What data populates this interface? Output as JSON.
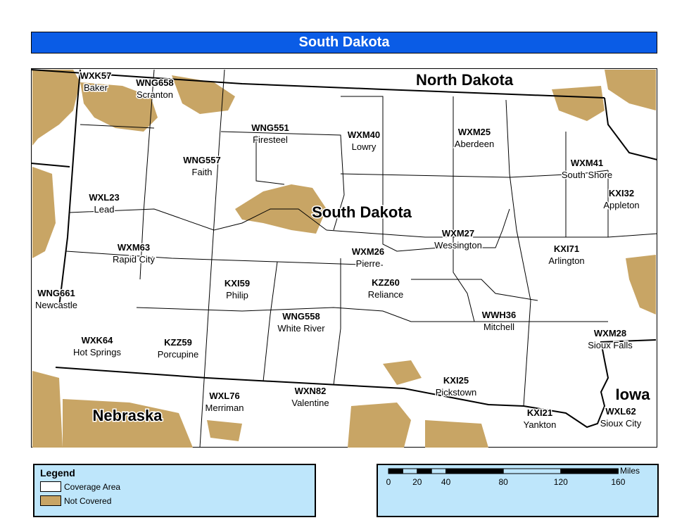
{
  "title": "South Dakota",
  "colors": {
    "title_bar": "#0a5ce6",
    "coverage": "#ffffff",
    "not_covered": "#c8a565",
    "panel": "#bee6fb"
  },
  "states": [
    {
      "name": "North Dakota"
    },
    {
      "name": "South Dakota"
    },
    {
      "name": "Nebraska"
    },
    {
      "name": "Iowa"
    }
  ],
  "stations": [
    {
      "code": "WXK57",
      "city": "Baker"
    },
    {
      "code": "WNG658",
      "city": "Scranton"
    },
    {
      "code": "WNG551",
      "city": "Firesteel"
    },
    {
      "code": "WXM40",
      "city": "Lowry"
    },
    {
      "code": "WXM25",
      "city": "Aberdeen"
    },
    {
      "code": "WXM41",
      "city": "South Shore"
    },
    {
      "code": "KXI32",
      "city": "Appleton"
    },
    {
      "code": "WNG557",
      "city": "Faith"
    },
    {
      "code": "WXL23",
      "city": "Lead"
    },
    {
      "code": "WXM63",
      "city": "Rapid City"
    },
    {
      "code": "WXM27",
      "city": "Wessington"
    },
    {
      "code": "KXI71",
      "city": "Arlington"
    },
    {
      "code": "WXM26",
      "city": "Pierre"
    },
    {
      "code": "WNG661",
      "city": "Newcastle"
    },
    {
      "code": "KXI59",
      "city": "Philip"
    },
    {
      "code": "KZZ60",
      "city": "Reliance"
    },
    {
      "code": "WNG558",
      "city": "White River"
    },
    {
      "code": "WWH36",
      "city": "Mitchell"
    },
    {
      "code": "WXM28",
      "city": "Sioux Falls"
    },
    {
      "code": "WXK64",
      "city": "Hot Springs"
    },
    {
      "code": "KZZ59",
      "city": "Porcupine"
    },
    {
      "code": "KXI25",
      "city": "Pickstown"
    },
    {
      "code": "WXL76",
      "city": "Merriman"
    },
    {
      "code": "WXN82",
      "city": "Valentine"
    },
    {
      "code": "KXI21",
      "city": "Yankton"
    },
    {
      "code": "WXL62",
      "city": "Sioux City"
    }
  ],
  "legend": {
    "title": "Legend",
    "items": [
      {
        "label": "Coverage Area",
        "color": "#ffffff"
      },
      {
        "label": "Not Covered",
        "color": "#c8a565"
      }
    ]
  },
  "scale": {
    "unit": "Miles",
    "ticks": [
      "0",
      "20",
      "40",
      "80",
      "120",
      "160"
    ],
    "segments_miles": [
      0,
      10,
      20,
      30,
      40,
      80,
      120,
      160
    ]
  }
}
